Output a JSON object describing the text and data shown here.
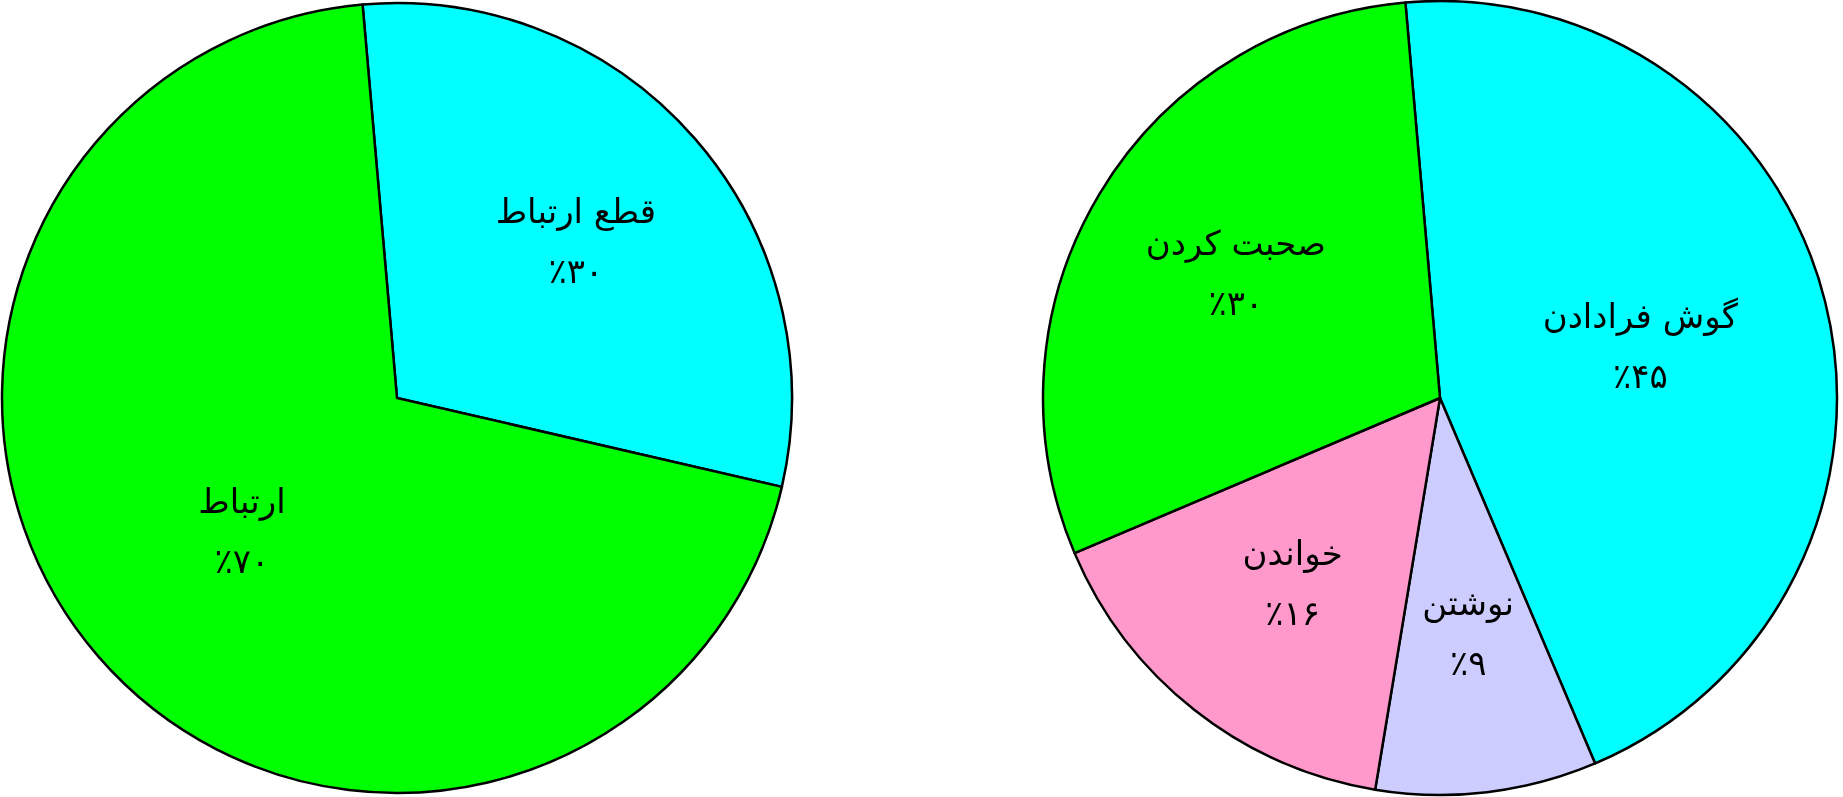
{
  "chart_data": [
    {
      "type": "pie",
      "categories": [
        "قطع ارتباط",
        "ارتباط"
      ],
      "values": [
        30,
        70
      ],
      "colors": [
        "#00ffff",
        "#00ff00"
      ],
      "value_labels": [
        "٪۳۰",
        "٪۷۰"
      ]
    },
    {
      "type": "pie",
      "categories": [
        "گوش فرادادن",
        "نوشتن",
        "خواندن",
        "صحبت کردن"
      ],
      "values": [
        45,
        9,
        16,
        30
      ],
      "colors": [
        "#00ffff",
        "#ccccff",
        "#ff99cc",
        "#00ff00"
      ],
      "value_labels": [
        "٪۴۵",
        "٪۹",
        "٪۱۶",
        "٪۳۰"
      ]
    }
  ]
}
